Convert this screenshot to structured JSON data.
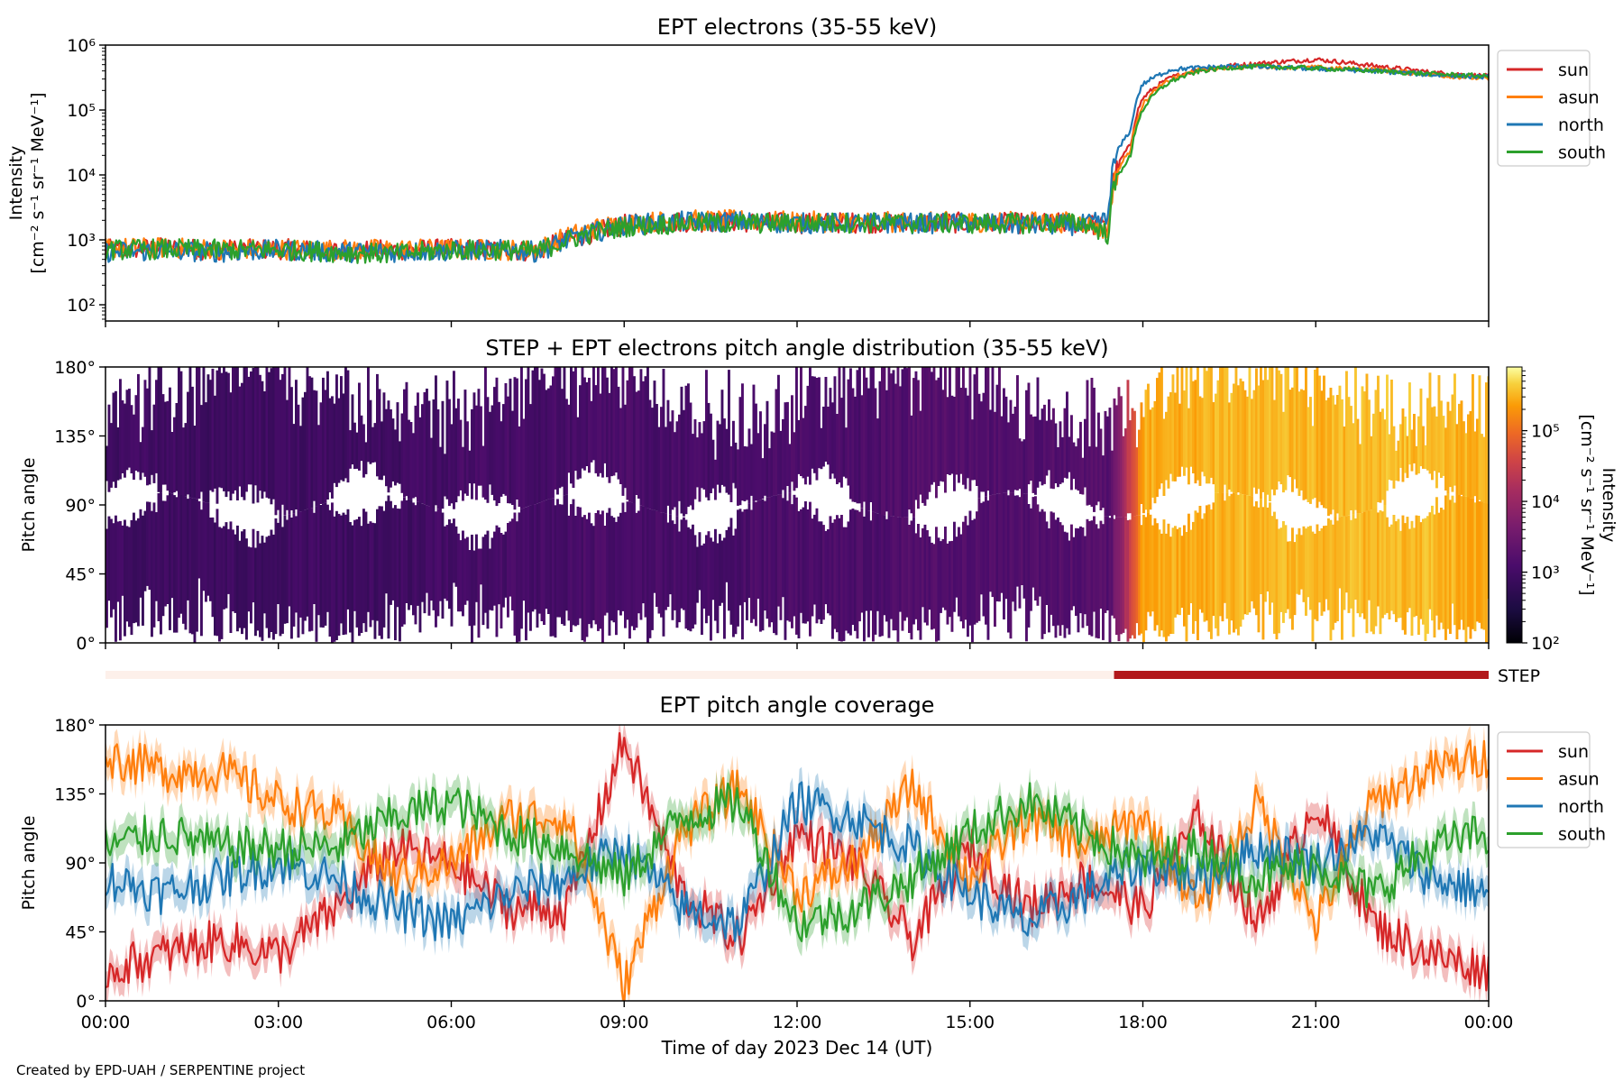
{
  "titles": {
    "top": "EPT electrons (35-55 keV)",
    "middle": "STEP + EPT electrons pitch angle distribution (35-55 keV)",
    "bottom": "EPT pitch angle coverage"
  },
  "axes": {
    "top_ylabel_1": "Intensity",
    "top_ylabel_2": "[cm⁻² s⁻¹ sr⁻¹ MeV⁻¹]",
    "pitch_ylabel": "Pitch angle",
    "xlabel": "Time of day 2023 Dec 14 (UT)",
    "x_ticks": [
      "00:00",
      "03:00",
      "06:00",
      "09:00",
      "12:00",
      "15:00",
      "18:00",
      "21:00",
      "00:00"
    ],
    "intensity_ticks": [
      "10²",
      "10³",
      "10⁴",
      "10⁵",
      "10⁶"
    ],
    "pitch_ticks": [
      "0°",
      "45°",
      "90°",
      "135°",
      "180°"
    ]
  },
  "colorbar": {
    "label_1": "Intensity",
    "label_2": "[cm⁻² s⁻¹ sr⁻¹ MeV⁻¹]",
    "ticks": [
      "10²",
      "10³",
      "10⁴",
      "10⁵"
    ],
    "range_log10": [
      2,
      5.9
    ]
  },
  "step_label": "STEP",
  "credit": "Created by EPD-UAH / SERPENTINE project",
  "legend_top": [
    {
      "name": "sun",
      "color": "#d62728"
    },
    {
      "name": "asun",
      "color": "#ff7f0e"
    },
    {
      "name": "north",
      "color": "#1f77b4"
    },
    {
      "name": "south",
      "color": "#2ca02c"
    }
  ],
  "legend_bottom": [
    {
      "name": "sun",
      "color": "#d62728"
    },
    {
      "name": "asun",
      "color": "#ff7f0e"
    },
    {
      "name": "north",
      "color": "#1f77b4"
    },
    {
      "name": "south",
      "color": "#2ca02c"
    }
  ],
  "chart_data": [
    {
      "type": "line",
      "title": "EPT electrons (35-55 keV)",
      "x_unit": "hours UT, 2023 Dec 14",
      "xlim": [
        0,
        24
      ],
      "ylim_log10": [
        1.75,
        6
      ],
      "yscale": "log",
      "x": [
        0,
        1,
        2,
        3,
        4,
        5,
        6,
        7,
        7.5,
        8.5,
        9,
        10,
        11,
        12,
        13,
        14,
        15,
        16,
        17,
        17.4,
        17.8,
        18,
        18.5,
        19,
        19.5,
        19.8,
        20,
        21,
        22,
        23,
        24
      ],
      "series": [
        {
          "name": "sun",
          "values": [
            700,
            750,
            700,
            720,
            680,
            700,
            720,
            700,
            650,
            1300,
            1700,
            1900,
            1900,
            1800,
            1850,
            1800,
            1850,
            1800,
            1800,
            1500,
            30000,
            150000,
            320000,
            420000,
            480000,
            500000,
            520000,
            600000,
            480000,
            380000,
            330000
          ]
        },
        {
          "name": "asun",
          "values": [
            750,
            750,
            720,
            720,
            700,
            720,
            720,
            700,
            700,
            1500,
            1800,
            2000,
            2000,
            1900,
            1900,
            1850,
            1900,
            1900,
            1850,
            1300,
            25000,
            120000,
            300000,
            420000,
            450000,
            460000,
            470000,
            450000,
            420000,
            350000,
            300000
          ]
        },
        {
          "name": "north",
          "values": [
            650,
            680,
            650,
            700,
            650,
            650,
            680,
            700,
            650,
            1300,
            1700,
            1900,
            1900,
            1800,
            1800,
            1800,
            1800,
            1700,
            1700,
            2000,
            50000,
            250000,
            420000,
            450000,
            470000,
            480000,
            460000,
            430000,
            400000,
            350000,
            320000
          ]
        },
        {
          "name": "south",
          "values": [
            700,
            720,
            700,
            700,
            650,
            600,
            700,
            700,
            650,
            1300,
            1600,
            1800,
            1800,
            1800,
            1850,
            1800,
            1800,
            1800,
            1800,
            1200,
            20000,
            100000,
            280000,
            400000,
            450000,
            460000,
            470000,
            440000,
            400000,
            360000,
            330000
          ]
        }
      ]
    },
    {
      "type": "heatmap",
      "title": "STEP + EPT electrons pitch angle distribution (35-55 keV)",
      "xlim": [
        0,
        24
      ],
      "ylim": [
        0,
        180
      ],
      "colorscale_log10": [
        2,
        5.9
      ],
      "x_breakpoints_hours": [
        0,
        17.4,
        17.7,
        18,
        24
      ],
      "log10_intensity_at_breakpoints": [
        2.9,
        3.2,
        4.3,
        5.5,
        5.5
      ]
    },
    {
      "type": "line",
      "title": "EPT pitch angle coverage",
      "xlim": [
        0,
        24
      ],
      "ylim": [
        0,
        180
      ],
      "x": [
        0,
        1,
        2,
        3,
        4,
        5,
        6,
        7,
        8,
        9,
        10,
        11,
        12,
        13,
        14,
        15,
        16,
        17,
        18,
        19,
        20,
        21,
        22,
        23,
        24
      ],
      "series": [
        {
          "name": "sun",
          "values": [
            20,
            30,
            40,
            30,
            60,
            100,
            90,
            60,
            60,
            170,
            70,
            40,
            110,
            90,
            40,
            100,
            60,
            80,
            60,
            120,
            50,
            130,
            50,
            30,
            20
          ]
        },
        {
          "name": "asun",
          "values": [
            160,
            150,
            150,
            130,
            120,
            80,
            90,
            120,
            120,
            10,
            110,
            140,
            70,
            90,
            140,
            80,
            120,
            100,
            120,
            60,
            130,
            50,
            130,
            150,
            160
          ]
        },
        {
          "name": "north",
          "values": [
            80,
            70,
            80,
            90,
            80,
            60,
            50,
            70,
            80,
            100,
            60,
            50,
            130,
            120,
            100,
            70,
            50,
            70,
            90,
            80,
            100,
            90,
            110,
            80,
            70
          ]
        },
        {
          "name": "south",
          "values": [
            100,
            110,
            100,
            100,
            100,
            120,
            130,
            110,
            100,
            80,
            120,
            130,
            50,
            60,
            80,
            110,
            130,
            110,
            90,
            100,
            80,
            90,
            70,
            100,
            110
          ]
        }
      ],
      "bands": "shaded ±10° around each series"
    }
  ],
  "step_bar": {
    "start_hour": 17.5,
    "end_hour": 24,
    "inactive_color": "#fdf0ea",
    "active_color": "#b2181b"
  }
}
